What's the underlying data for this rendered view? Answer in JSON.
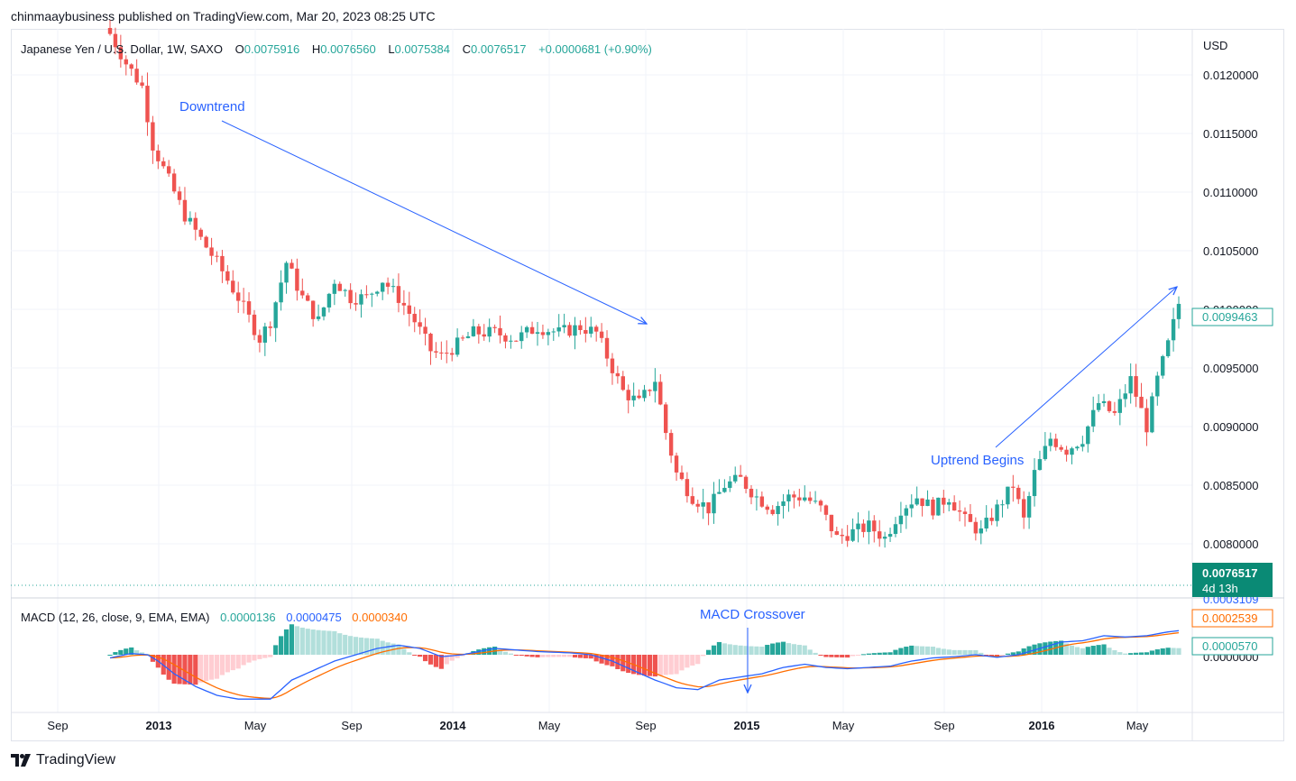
{
  "header": {
    "credit": "chinmaaybusiness published on TradingView.com, Mar 20, 2023 08:25 UTC"
  },
  "footer": {
    "brand": "TradingView"
  },
  "colors": {
    "up": "#26a69a",
    "down": "#ef5350",
    "macd_line": "#2962ff",
    "signal_line": "#ff6d00",
    "hist_up_strong": "#26a69a",
    "hist_up_weak": "#b2dfdb",
    "hist_down_strong": "#ef5350",
    "hist_down_weak": "#ffcdd2",
    "annotation": "#2962ff"
  },
  "price_pane": {
    "legend": {
      "symbol": "Japanese Yen / U.S. Dollar, 1W, SAXO",
      "o_label": "O",
      "o_value": "0.0075916",
      "h_label": "H",
      "h_value": "0.0076560",
      "l_label": "L",
      "l_value": "0.0075384",
      "c_label": "C",
      "c_value": "0.0076517",
      "change": "+0.0000681 (+0.90%)"
    },
    "currency": "USD",
    "price_ticks": [
      "0.0120000",
      "0.0115000",
      "0.0110000",
      "0.0105000",
      "0.0100000",
      "0.0095000",
      "0.0090000",
      "0.0085000",
      "0.0080000"
    ],
    "last_price_badge": "0.0099463",
    "current_price_badge": "0.0076517",
    "countdown": "4d 13h",
    "annotations": {
      "downtrend": "Downtrend",
      "uptrend": "Uptrend Begins",
      "macd_crossover": "MACD Crossover"
    }
  },
  "macd_pane": {
    "legend": {
      "title": "MACD (12, 26, close, 9, EMA, EMA)",
      "hist": "0.0000136",
      "macd": "0.0000475",
      "signal": "0.0000340"
    },
    "badge_top": "0.0003109",
    "badge_signal": "0.0002539",
    "badge_hist": "0.0000570",
    "badge_zero": "0.0000000"
  },
  "x_axis": {
    "labels": [
      {
        "text": "Sep",
        "bold": false
      },
      {
        "text": "2013",
        "bold": true
      },
      {
        "text": "May",
        "bold": false
      },
      {
        "text": "Sep",
        "bold": false
      },
      {
        "text": "2014",
        "bold": true
      },
      {
        "text": "May",
        "bold": false
      },
      {
        "text": "Sep",
        "bold": false
      },
      {
        "text": "2015",
        "bold": true
      },
      {
        "text": "May",
        "bold": false
      },
      {
        "text": "Sep",
        "bold": false
      },
      {
        "text": "2016",
        "bold": true
      },
      {
        "text": "May",
        "bold": false
      }
    ]
  },
  "chart_data": {
    "type": "candlestick",
    "interval": "1W",
    "y_range": [
      0.00765,
      0.0123
    ],
    "grid": true,
    "anchors": [
      [
        0,
        0.01235
      ],
      [
        3,
        0.0121
      ],
      [
        6,
        0.0119
      ],
      [
        8,
        0.0114
      ],
      [
        11,
        0.0111
      ],
      [
        14,
        0.0108
      ],
      [
        17,
        0.0106
      ],
      [
        20,
        0.0104
      ],
      [
        24,
        0.0101
      ],
      [
        28,
        0.00975
      ],
      [
        30,
        0.0099
      ],
      [
        33,
        0.0104
      ],
      [
        36,
        0.0101
      ],
      [
        39,
        0.0099
      ],
      [
        42,
        0.01025
      ],
      [
        45,
        0.0101
      ],
      [
        48,
        0.0101
      ],
      [
        51,
        0.01025
      ],
      [
        54,
        0.0101
      ],
      [
        57,
        0.0099
      ],
      [
        60,
        0.00965
      ],
      [
        62,
        0.0096
      ],
      [
        65,
        0.0097
      ],
      [
        68,
        0.0098
      ],
      [
        72,
        0.0098
      ],
      [
        76,
        0.00975
      ],
      [
        80,
        0.00985
      ],
      [
        84,
        0.0098
      ],
      [
        88,
        0.00985
      ],
      [
        91,
        0.0098
      ],
      [
        93,
        0.0096
      ],
      [
        96,
        0.0093
      ],
      [
        99,
        0.0092
      ],
      [
        102,
        0.0094
      ],
      [
        104,
        0.00895
      ],
      [
        106,
        0.0086
      ],
      [
        109,
        0.0084
      ],
      [
        112,
        0.0083
      ],
      [
        115,
        0.0085
      ],
      [
        118,
        0.00855
      ],
      [
        121,
        0.0084
      ],
      [
        124,
        0.0083
      ],
      [
        127,
        0.0084
      ],
      [
        130,
        0.0084
      ],
      [
        133,
        0.0083
      ],
      [
        136,
        0.00805
      ],
      [
        139,
        0.0081
      ],
      [
        142,
        0.00815
      ],
      [
        145,
        0.00805
      ],
      [
        148,
        0.0083
      ],
      [
        151,
        0.0084
      ],
      [
        154,
        0.0083
      ],
      [
        157,
        0.0084
      ],
      [
        160,
        0.0082
      ],
      [
        163,
        0.0081
      ],
      [
        166,
        0.0083
      ],
      [
        169,
        0.0085
      ],
      [
        171,
        0.0082
      ],
      [
        173,
        0.0086
      ],
      [
        176,
        0.0089
      ],
      [
        179,
        0.0088
      ],
      [
        182,
        0.0089
      ],
      [
        185,
        0.0092
      ],
      [
        188,
        0.0091
      ],
      [
        191,
        0.0094
      ],
      [
        194,
        0.009
      ],
      [
        196,
        0.0094
      ],
      [
        198,
        0.0097
      ],
      [
        200,
        0.01005
      ]
    ],
    "macd_range": [
      -0.00064,
      0.00034
    ],
    "macd_anchors": [
      [
        0,
        -5e-05
      ],
      [
        4,
        2e-05
      ],
      [
        7,
        0.0
      ],
      [
        9,
        -0.0001
      ],
      [
        12,
        -0.0003
      ],
      [
        16,
        -0.0005
      ],
      [
        20,
        -0.00064
      ],
      [
        24,
        -0.0007
      ],
      [
        30,
        -0.0007
      ],
      [
        34,
        -0.0004
      ],
      [
        38,
        -0.00025
      ],
      [
        42,
        -0.0001
      ],
      [
        46,
        0.0
      ],
      [
        50,
        0.0001
      ],
      [
        54,
        0.00015
      ],
      [
        58,
        0.0001
      ],
      [
        62,
        -3e-05
      ],
      [
        66,
        0.0
      ],
      [
        72,
        0.0001
      ],
      [
        80,
        5e-05
      ],
      [
        86,
        3e-05
      ],
      [
        90,
        0.0
      ],
      [
        94,
        -0.0001
      ],
      [
        98,
        -0.00025
      ],
      [
        102,
        -0.0004
      ],
      [
        106,
        -0.00052
      ],
      [
        110,
        -0.00055
      ],
      [
        114,
        -0.0004
      ],
      [
        118,
        -0.00035
      ],
      [
        122,
        -0.0003
      ],
      [
        126,
        -0.0002
      ],
      [
        130,
        -0.00015
      ],
      [
        134,
        -0.0002
      ],
      [
        138,
        -0.00022
      ],
      [
        142,
        -0.0002
      ],
      [
        146,
        -0.00018
      ],
      [
        150,
        -0.0001
      ],
      [
        154,
        -5e-05
      ],
      [
        158,
        -3e-05
      ],
      [
        162,
        0.0
      ],
      [
        166,
        -4e-05
      ],
      [
        170,
        0.0
      ],
      [
        174,
        0.0001
      ],
      [
        178,
        0.0002
      ],
      [
        182,
        0.00022
      ],
      [
        186,
        0.0003
      ],
      [
        190,
        0.00028
      ],
      [
        194,
        0.0003
      ],
      [
        198,
        0.00036
      ],
      [
        200,
        0.00038
      ]
    ],
    "signal_smoothing": 7
  }
}
